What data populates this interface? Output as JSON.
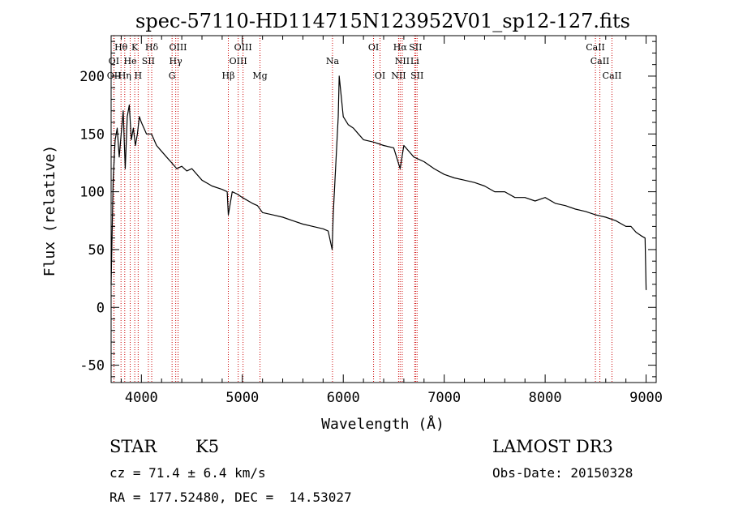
{
  "chart_data": {
    "type": "line",
    "title": "spec-57110-HD114715N123952V01_sp12-127.fits",
    "xlabel": "Wavelength (Å)",
    "ylabel": "Flux (relative)",
    "xlim": [
      3700,
      9100
    ],
    "ylim": [
      -65,
      235
    ],
    "xticks": [
      4000,
      5000,
      6000,
      7000,
      8000,
      9000
    ],
    "yticks": [
      -50,
      0,
      50,
      100,
      150,
      200
    ],
    "series": [
      {
        "color": "#000000",
        "x": [
          3700,
          3720,
          3740,
          3760,
          3780,
          3800,
          3820,
          3840,
          3860,
          3880,
          3900,
          3920,
          3940,
          3960,
          3980,
          4000,
          4050,
          4100,
          4150,
          4200,
          4250,
          4300,
          4350,
          4400,
          4450,
          4500,
          4600,
          4700,
          4800,
          4850,
          4861,
          4900,
          4950,
          5000,
          5100,
          5150,
          5200,
          5300,
          5400,
          5500,
          5600,
          5700,
          5800,
          5850,
          5890,
          5900,
          5950,
          5960,
          6000,
          6050,
          6100,
          6150,
          6200,
          6300,
          6400,
          6500,
          6563,
          6600,
          6700,
          6800,
          6900,
          7000,
          7100,
          7200,
          7300,
          7400,
          7500,
          7600,
          7700,
          7800,
          7900,
          8000,
          8100,
          8200,
          8300,
          8400,
          8500,
          8600,
          8700,
          8800,
          8850,
          8900,
          8950,
          8990,
          9000
        ],
        "y": [
          20,
          110,
          145,
          155,
          130,
          150,
          170,
          120,
          165,
          175,
          145,
          155,
          140,
          150,
          165,
          160,
          150,
          150,
          140,
          135,
          130,
          125,
          120,
          122,
          118,
          120,
          110,
          105,
          102,
          100,
          80,
          100,
          98,
          95,
          90,
          88,
          82,
          80,
          78,
          75,
          72,
          70,
          68,
          66,
          50,
          80,
          165,
          200,
          165,
          158,
          155,
          150,
          145,
          143,
          140,
          138,
          120,
          140,
          130,
          126,
          120,
          115,
          112,
          110,
          108,
          105,
          100,
          100,
          95,
          95,
          92,
          95,
          90,
          88,
          85,
          83,
          80,
          78,
          75,
          70,
          70,
          65,
          62,
          60,
          15
        ]
      }
    ],
    "lines": [
      {
        "label": "Hθ",
        "x": 3798,
        "row": 1
      },
      {
        "label": "K",
        "x": 3934,
        "row": 1
      },
      {
        "label": "Hδ",
        "x": 4102,
        "row": 1
      },
      {
        "label": "OIII",
        "x": 4363,
        "row": 1
      },
      {
        "label": "OIII",
        "x": 5007,
        "row": 1
      },
      {
        "label": "OI",
        "x": 6300,
        "row": 1
      },
      {
        "label": "Hα",
        "x": 6563,
        "row": 1
      },
      {
        "label": "SII",
        "x": 6716,
        "row": 1
      },
      {
        "label": "CaII",
        "x": 8498,
        "row": 1
      },
      {
        "label": "OI",
        "x": 3727,
        "row": 2
      },
      {
        "label": "He",
        "x": 3889,
        "row": 2
      },
      {
        "label": "SII",
        "x": 4069,
        "row": 2
      },
      {
        "label": "Hγ",
        "x": 4340,
        "row": 2
      },
      {
        "label": "OIII",
        "x": 4959,
        "row": 2
      },
      {
        "label": "Na",
        "x": 5893,
        "row": 2
      },
      {
        "label": "NII",
        "x": 6584,
        "row": 2
      },
      {
        "label": "Li",
        "x": 6708,
        "row": 2
      },
      {
        "label": "CaII",
        "x": 8542,
        "row": 2
      },
      {
        "label": "OII",
        "x": 3729,
        "row": 3
      },
      {
        "label": "Hη",
        "x": 3835,
        "row": 3
      },
      {
        "label": "H",
        "x": 3968,
        "row": 3
      },
      {
        "label": "G",
        "x": 4304,
        "row": 3
      },
      {
        "label": "Hβ",
        "x": 4861,
        "row": 3
      },
      {
        "label": "Mg",
        "x": 5175,
        "row": 3
      },
      {
        "label": "OI",
        "x": 6364,
        "row": 3
      },
      {
        "label": "NII",
        "x": 6548,
        "row": 3
      },
      {
        "label": "SII",
        "x": 6731,
        "row": 3
      },
      {
        "label": "CaII",
        "x": 8662,
        "row": 3
      }
    ]
  },
  "info": {
    "class_label": "STAR",
    "subclass": "K5",
    "survey": "LAMOST DR3",
    "cz": "cz = 71.4 ± 6.4 km/s",
    "obs_date": "Obs-Date: 20150328",
    "coords": "RA = 177.52480, DEC =  14.53027"
  },
  "colors": {
    "spectrum": "#000000",
    "line_markers": "#cc0000",
    "background": "#ffffff"
  }
}
